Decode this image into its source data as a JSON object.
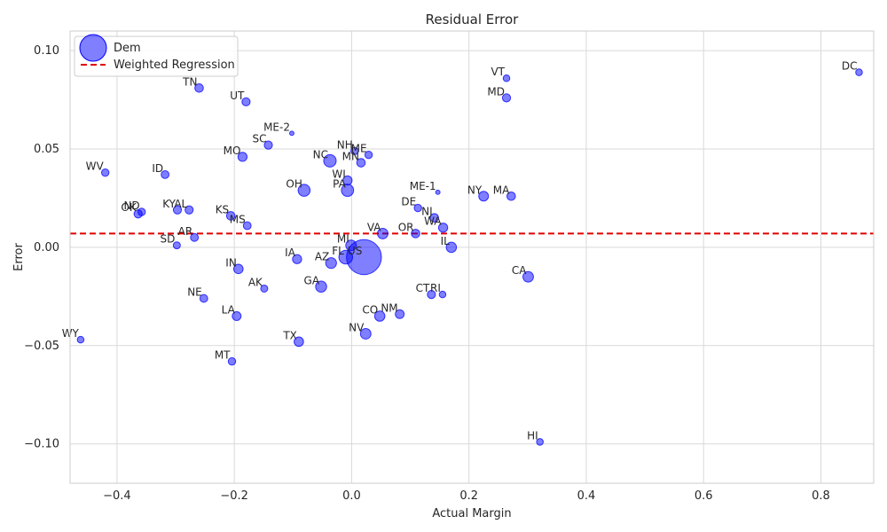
{
  "chart_data": {
    "type": "scatter",
    "title": "Residual Error",
    "xlabel": "Actual Margin",
    "ylabel": "Error",
    "xlim": [
      -0.48,
      0.89
    ],
    "ylim": [
      -0.12,
      0.11
    ],
    "xticks": [
      -0.4,
      -0.2,
      0.0,
      0.2,
      0.4,
      0.6,
      0.8
    ],
    "xtick_labels": [
      "−0.4",
      "−0.2",
      "0.0",
      "0.2",
      "0.4",
      "0.6",
      "0.8"
    ],
    "yticks": [
      0.1,
      0.05,
      0.0,
      -0.05,
      -0.1
    ],
    "ytick_labels": [
      "0.10",
      "0.05",
      "0.00",
      "−0.05",
      "−0.10"
    ],
    "grid": true,
    "legend": {
      "placement": "top-left",
      "entries": [
        {
          "label": "Dem",
          "kind": "marker",
          "color": "#0000ff"
        },
        {
          "label": "Weighted Regression",
          "kind": "dashed-line",
          "color": "#e00000"
        }
      ]
    },
    "marker_color": "#0000ff",
    "marker_alpha": 0.5,
    "regression_line": {
      "y": 0.007,
      "color": "#e00000",
      "style": "dashed"
    },
    "series": [
      {
        "name": "Dem",
        "points": [
          {
            "label": "DC",
            "x": 0.865,
            "y": 0.089,
            "size": 0.8
          },
          {
            "label": "VT",
            "x": 0.264,
            "y": 0.086,
            "size": 0.8
          },
          {
            "label": "MD",
            "x": 0.264,
            "y": 0.076,
            "size": 1.2
          },
          {
            "label": "TN",
            "x": -0.26,
            "y": 0.081,
            "size": 1.3
          },
          {
            "label": "UT",
            "x": -0.18,
            "y": 0.074,
            "size": 1.2
          },
          {
            "label": "ME-2",
            "x": -0.102,
            "y": 0.058,
            "size": 0.35
          },
          {
            "label": "SC",
            "x": -0.142,
            "y": 0.052,
            "size": 1.2
          },
          {
            "label": "MO",
            "x": -0.186,
            "y": 0.046,
            "size": 1.5
          },
          {
            "label": "NH",
            "x": 0.005,
            "y": 0.049,
            "size": 1.0
          },
          {
            "label": "ME",
            "x": 0.029,
            "y": 0.047,
            "size": 1.0
          },
          {
            "label": "MN",
            "x": 0.016,
            "y": 0.043,
            "size": 1.3
          },
          {
            "label": "NC",
            "x": -0.037,
            "y": 0.044,
            "size": 2.8
          },
          {
            "label": "WV",
            "x": -0.42,
            "y": 0.038,
            "size": 1.0
          },
          {
            "label": "ID",
            "x": -0.318,
            "y": 0.037,
            "size": 1.1
          },
          {
            "label": "WI",
            "x": -0.007,
            "y": 0.034,
            "size": 1.5
          },
          {
            "label": "PA",
            "x": -0.007,
            "y": 0.029,
            "size": 2.7
          },
          {
            "label": "OH",
            "x": -0.081,
            "y": 0.029,
            "size": 2.6
          },
          {
            "label": "ME-1",
            "x": 0.147,
            "y": 0.028,
            "size": 0.35
          },
          {
            "label": "NY",
            "x": 0.225,
            "y": 0.026,
            "size": 1.7
          },
          {
            "label": "MA",
            "x": 0.272,
            "y": 0.026,
            "size": 1.3
          },
          {
            "label": "DE",
            "x": 0.113,
            "y": 0.02,
            "size": 1.0
          },
          {
            "label": "NJ",
            "x": 0.141,
            "y": 0.015,
            "size": 1.3
          },
          {
            "label": "WA",
            "x": 0.156,
            "y": 0.01,
            "size": 1.5
          },
          {
            "label": "KY",
            "x": -0.297,
            "y": 0.019,
            "size": 1.2
          },
          {
            "label": "AL",
            "x": -0.277,
            "y": 0.019,
            "size": 1.2
          },
          {
            "label": "ND",
            "x": -0.358,
            "y": 0.018,
            "size": 1.0
          },
          {
            "label": "OK",
            "x": -0.364,
            "y": 0.017,
            "size": 1.2
          },
          {
            "label": "KS",
            "x": -0.206,
            "y": 0.016,
            "size": 1.3
          },
          {
            "label": "MS",
            "x": -0.178,
            "y": 0.011,
            "size": 1.1
          },
          {
            "label": "VA",
            "x": 0.053,
            "y": 0.007,
            "size": 2.0
          },
          {
            "label": "OR",
            "x": 0.109,
            "y": 0.007,
            "size": 1.3
          },
          {
            "label": "AR",
            "x": -0.268,
            "y": 0.005,
            "size": 1.1
          },
          {
            "label": "SD",
            "x": -0.298,
            "y": 0.001,
            "size": 0.9
          },
          {
            "label": "MI",
            "x": -0.001,
            "y": 0.001,
            "size": 2.0
          },
          {
            "label": "IL",
            "x": 0.17,
            "y": 0.0,
            "size": 1.9
          },
          {
            "label": "FL",
            "x": -0.01,
            "y": -0.005,
            "size": 3.4
          },
          {
            "label": "US",
            "x": 0.021,
            "y": -0.005,
            "size": 22.0
          },
          {
            "label": "AZ",
            "x": -0.035,
            "y": -0.008,
            "size": 2.1
          },
          {
            "label": "IA",
            "x": -0.093,
            "y": -0.006,
            "size": 1.5
          },
          {
            "label": "IN",
            "x": -0.193,
            "y": -0.011,
            "size": 1.6
          },
          {
            "label": "CA",
            "x": 0.301,
            "y": -0.015,
            "size": 2.0
          },
          {
            "label": "AK",
            "x": -0.149,
            "y": -0.021,
            "size": 0.9
          },
          {
            "label": "GA",
            "x": -0.052,
            "y": -0.02,
            "size": 2.2
          },
          {
            "label": "CT",
            "x": 0.136,
            "y": -0.024,
            "size": 1.2
          },
          {
            "label": "RI",
            "x": 0.155,
            "y": -0.024,
            "size": 0.8
          },
          {
            "label": "NE",
            "x": -0.252,
            "y": -0.026,
            "size": 1.1
          },
          {
            "label": "CO",
            "x": 0.048,
            "y": -0.035,
            "size": 1.9
          },
          {
            "label": "NM",
            "x": 0.082,
            "y": -0.034,
            "size": 1.4
          },
          {
            "label": "LA",
            "x": -0.196,
            "y": -0.035,
            "size": 1.4
          },
          {
            "label": "NV",
            "x": 0.024,
            "y": -0.044,
            "size": 2.0
          },
          {
            "label": "TX",
            "x": -0.09,
            "y": -0.048,
            "size": 1.6
          },
          {
            "label": "WY",
            "x": -0.462,
            "y": -0.047,
            "size": 0.8
          },
          {
            "label": "MT",
            "x": -0.204,
            "y": -0.058,
            "size": 1.0
          },
          {
            "label": "HI",
            "x": 0.321,
            "y": -0.099,
            "size": 0.8
          }
        ]
      }
    ]
  }
}
